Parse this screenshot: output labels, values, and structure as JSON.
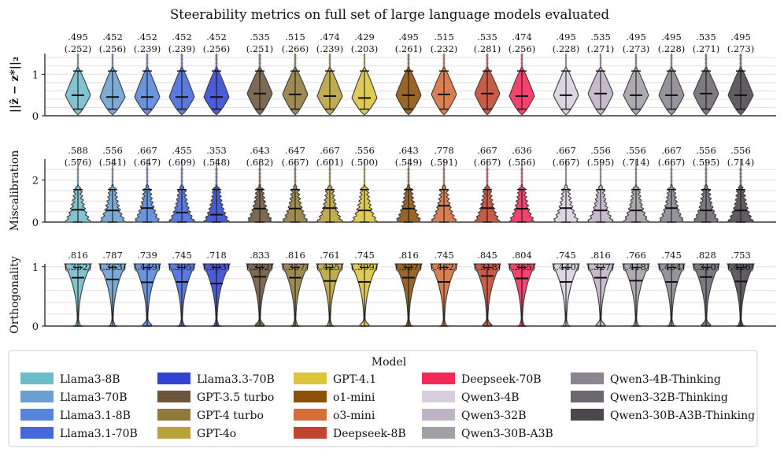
{
  "chart_data": {
    "type": "violin",
    "title": "Steerability metrics on full set of large language models evaluated",
    "legend": {
      "title": "Model",
      "placement": "bottom",
      "entries": [
        {
          "name": "Llama3-8B",
          "color": "#6fbcc9"
        },
        {
          "name": "Llama3-70B",
          "color": "#6a9fd3"
        },
        {
          "name": "Llama3.1-8B",
          "color": "#5585d6"
        },
        {
          "name": "Llama3.1-70B",
          "color": "#4468d9"
        },
        {
          "name": "Llama3.3-70B",
          "color": "#3344d2"
        },
        {
          "name": "GPT-3.5 turbo",
          "color": "#6b553c"
        },
        {
          "name": "GPT-4 turbo",
          "color": "#8f7a3e"
        },
        {
          "name": "GPT-4o",
          "color": "#b9a13b"
        },
        {
          "name": "GPT-4.1",
          "color": "#dcc43c"
        },
        {
          "name": "o1-mini",
          "color": "#8c5008"
        },
        {
          "name": "o3-mini",
          "color": "#d46e3a"
        },
        {
          "name": "Deepseek-8B",
          "color": "#c24430"
        },
        {
          "name": "Deepseek-70B",
          "color": "#f22a5a"
        },
        {
          "name": "Qwen3-4B",
          "color": "#d8cfdd"
        },
        {
          "name": "Qwen3-32B",
          "color": "#bfb3c6"
        },
        {
          "name": "Qwen3-30B-A3B",
          "color": "#a29fa6"
        },
        {
          "name": "Qwen3-4B-Thinking",
          "color": "#8a8590"
        },
        {
          "name": "Qwen3-32B-Thinking",
          "color": "#6d6870"
        },
        {
          "name": "Qwen3-30B-A3B-Thinking",
          "color": "#4a474d"
        }
      ]
    },
    "panels": [
      {
        "ylabel": "||ẑ − z*||₂",
        "ylim": [
          0,
          1.5
        ],
        "yticks": [
          "0",
          "1"
        ],
        "ytick_values": [
          0,
          1
        ],
        "shape": "diamond",
        "medians": [
          0.495,
          0.452,
          0.452,
          0.452,
          0.452,
          0.535,
          0.515,
          0.474,
          0.429,
          0.495,
          0.515,
          0.535,
          0.474,
          0.495,
          0.535,
          0.495,
          0.495,
          0.535,
          0.495
        ],
        "median_labels": [
          ".495",
          ".452",
          ".452",
          ".452",
          ".452",
          ".535",
          ".515",
          ".474",
          ".429",
          ".495",
          ".515",
          ".535",
          ".474",
          ".495",
          ".535",
          ".495",
          ".495",
          ".535",
          ".495"
        ],
        "iqr_labels": [
          "(.252)",
          "(.256)",
          "(.239)",
          "(.239)",
          "(.256)",
          "(.251)",
          "(.266)",
          "(.239)",
          "(.203)",
          "(.261)",
          "(.232)",
          "(.281)",
          "(.256)",
          "(.228)",
          "(.271)",
          "(.273)",
          "(.228)",
          "(.271)",
          "(.273)"
        ]
      },
      {
        "ylabel": "Miscalibration",
        "ylim": [
          0,
          3
        ],
        "yticks": [
          "0",
          "2"
        ],
        "ytick_values": [
          0,
          2
        ],
        "shape": "bottomheavy",
        "medians": [
          0.588,
          0.556,
          0.667,
          0.455,
          0.353,
          0.643,
          0.647,
          0.667,
          0.556,
          0.643,
          0.778,
          0.667,
          0.636,
          0.667,
          0.556,
          0.556,
          0.667,
          0.556,
          0.556
        ],
        "median_labels": [
          ".588",
          ".556",
          ".667",
          ".455",
          ".353",
          ".643",
          ".647",
          ".667",
          ".556",
          ".643",
          ".778",
          ".667",
          ".636",
          ".667",
          ".556",
          ".556",
          ".667",
          ".556",
          ".556"
        ],
        "iqr_labels": [
          "(.576)",
          "(.541)",
          "(.647)",
          "(.609)",
          "(.548)",
          "(.682)",
          "(.667)",
          "(.601)",
          "(.500)",
          "(.549)",
          "(.591)",
          "(.667)",
          "(.556)",
          "(.667)",
          "(.595)",
          "(.714)",
          "(.667)",
          "(.595)",
          "(.714)"
        ]
      },
      {
        "ylabel": "Orthogonality",
        "ylim": [
          0,
          1.05
        ],
        "yticks": [
          "0",
          "1"
        ],
        "ytick_values": [
          0,
          1
        ],
        "shape": "tophevy",
        "medians": [
          0.816,
          0.787,
          0.739,
          0.745,
          0.718,
          0.833,
          0.816,
          0.761,
          0.745,
          0.816,
          0.745,
          0.845,
          0.804,
          0.745,
          0.816,
          0.766,
          0.745,
          0.828,
          0.753
        ],
        "median_labels": [
          ".816",
          ".787",
          ".739",
          ".745",
          ".718",
          ".833",
          ".816",
          ".761",
          ".745",
          ".816",
          ".745",
          ".845",
          ".804",
          ".745",
          ".816",
          ".766",
          ".745",
          ".828",
          ".753"
        ],
        "iqr_labels": [
          "(.352)",
          "(.363)",
          "(.449)",
          "(.395)",
          "(.393)",
          "(.332)",
          "(.357)",
          "(.425)",
          "(.399)",
          "(.327)",
          "(.462)",
          "(.318)",
          "(.365)",
          "(.440)",
          "(.327)",
          "(.418)",
          "(.454)",
          "(.310)",
          "(.426)"
        ]
      }
    ]
  }
}
